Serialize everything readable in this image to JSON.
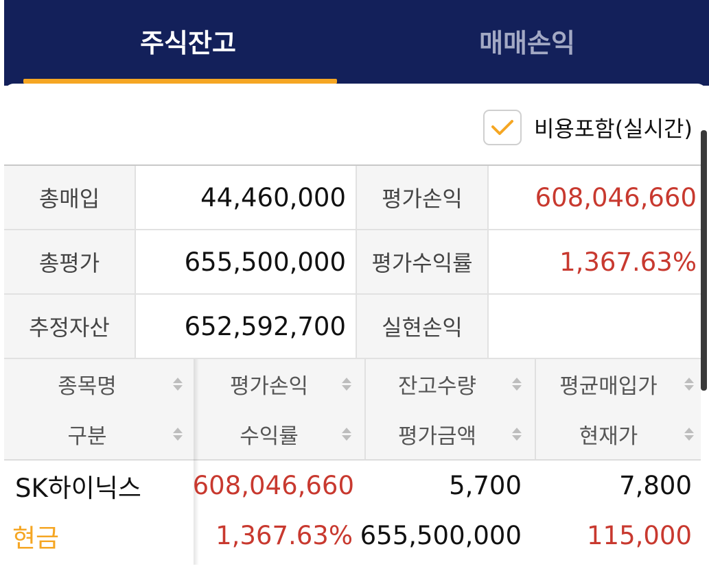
{
  "tabs": [
    {
      "label": "주식잔고",
      "active": true
    },
    {
      "label": "매매손익",
      "active": false
    }
  ],
  "colors": {
    "header_bg": "#13205a",
    "accent": "#f5a623",
    "profit_red": "#c8392f",
    "inactive_tab": "#a3a9c4"
  },
  "options": {
    "include_fees_label": "비용포함(실시간)",
    "include_fees_checked": true
  },
  "summary": [
    {
      "label": "총매입",
      "value": "44,460,000",
      "label2": "평가손익",
      "value2": "608,046,660"
    },
    {
      "label": "총평가",
      "value": "655,500,000",
      "label2": "평가수익률",
      "value2": "1,367.63%"
    },
    {
      "label": "추정자산",
      "value": "652,592,700",
      "label2": "실현손익",
      "value2": ""
    }
  ],
  "holdings": {
    "headers_top": [
      "종목명",
      "평가손익",
      "잔고수량",
      "평균매입가"
    ],
    "headers_bottom": [
      "구분",
      "수익률",
      "평가금액",
      "현재가"
    ],
    "rows": [
      {
        "name": "SK하이닉스",
        "type": "현금",
        "eval_pl": "608,046,660",
        "return_rate": "1,367.63%",
        "quantity": "5,700",
        "eval_amount": "655,500,000",
        "avg_price": "7,800",
        "current_price": "115,000"
      }
    ]
  }
}
